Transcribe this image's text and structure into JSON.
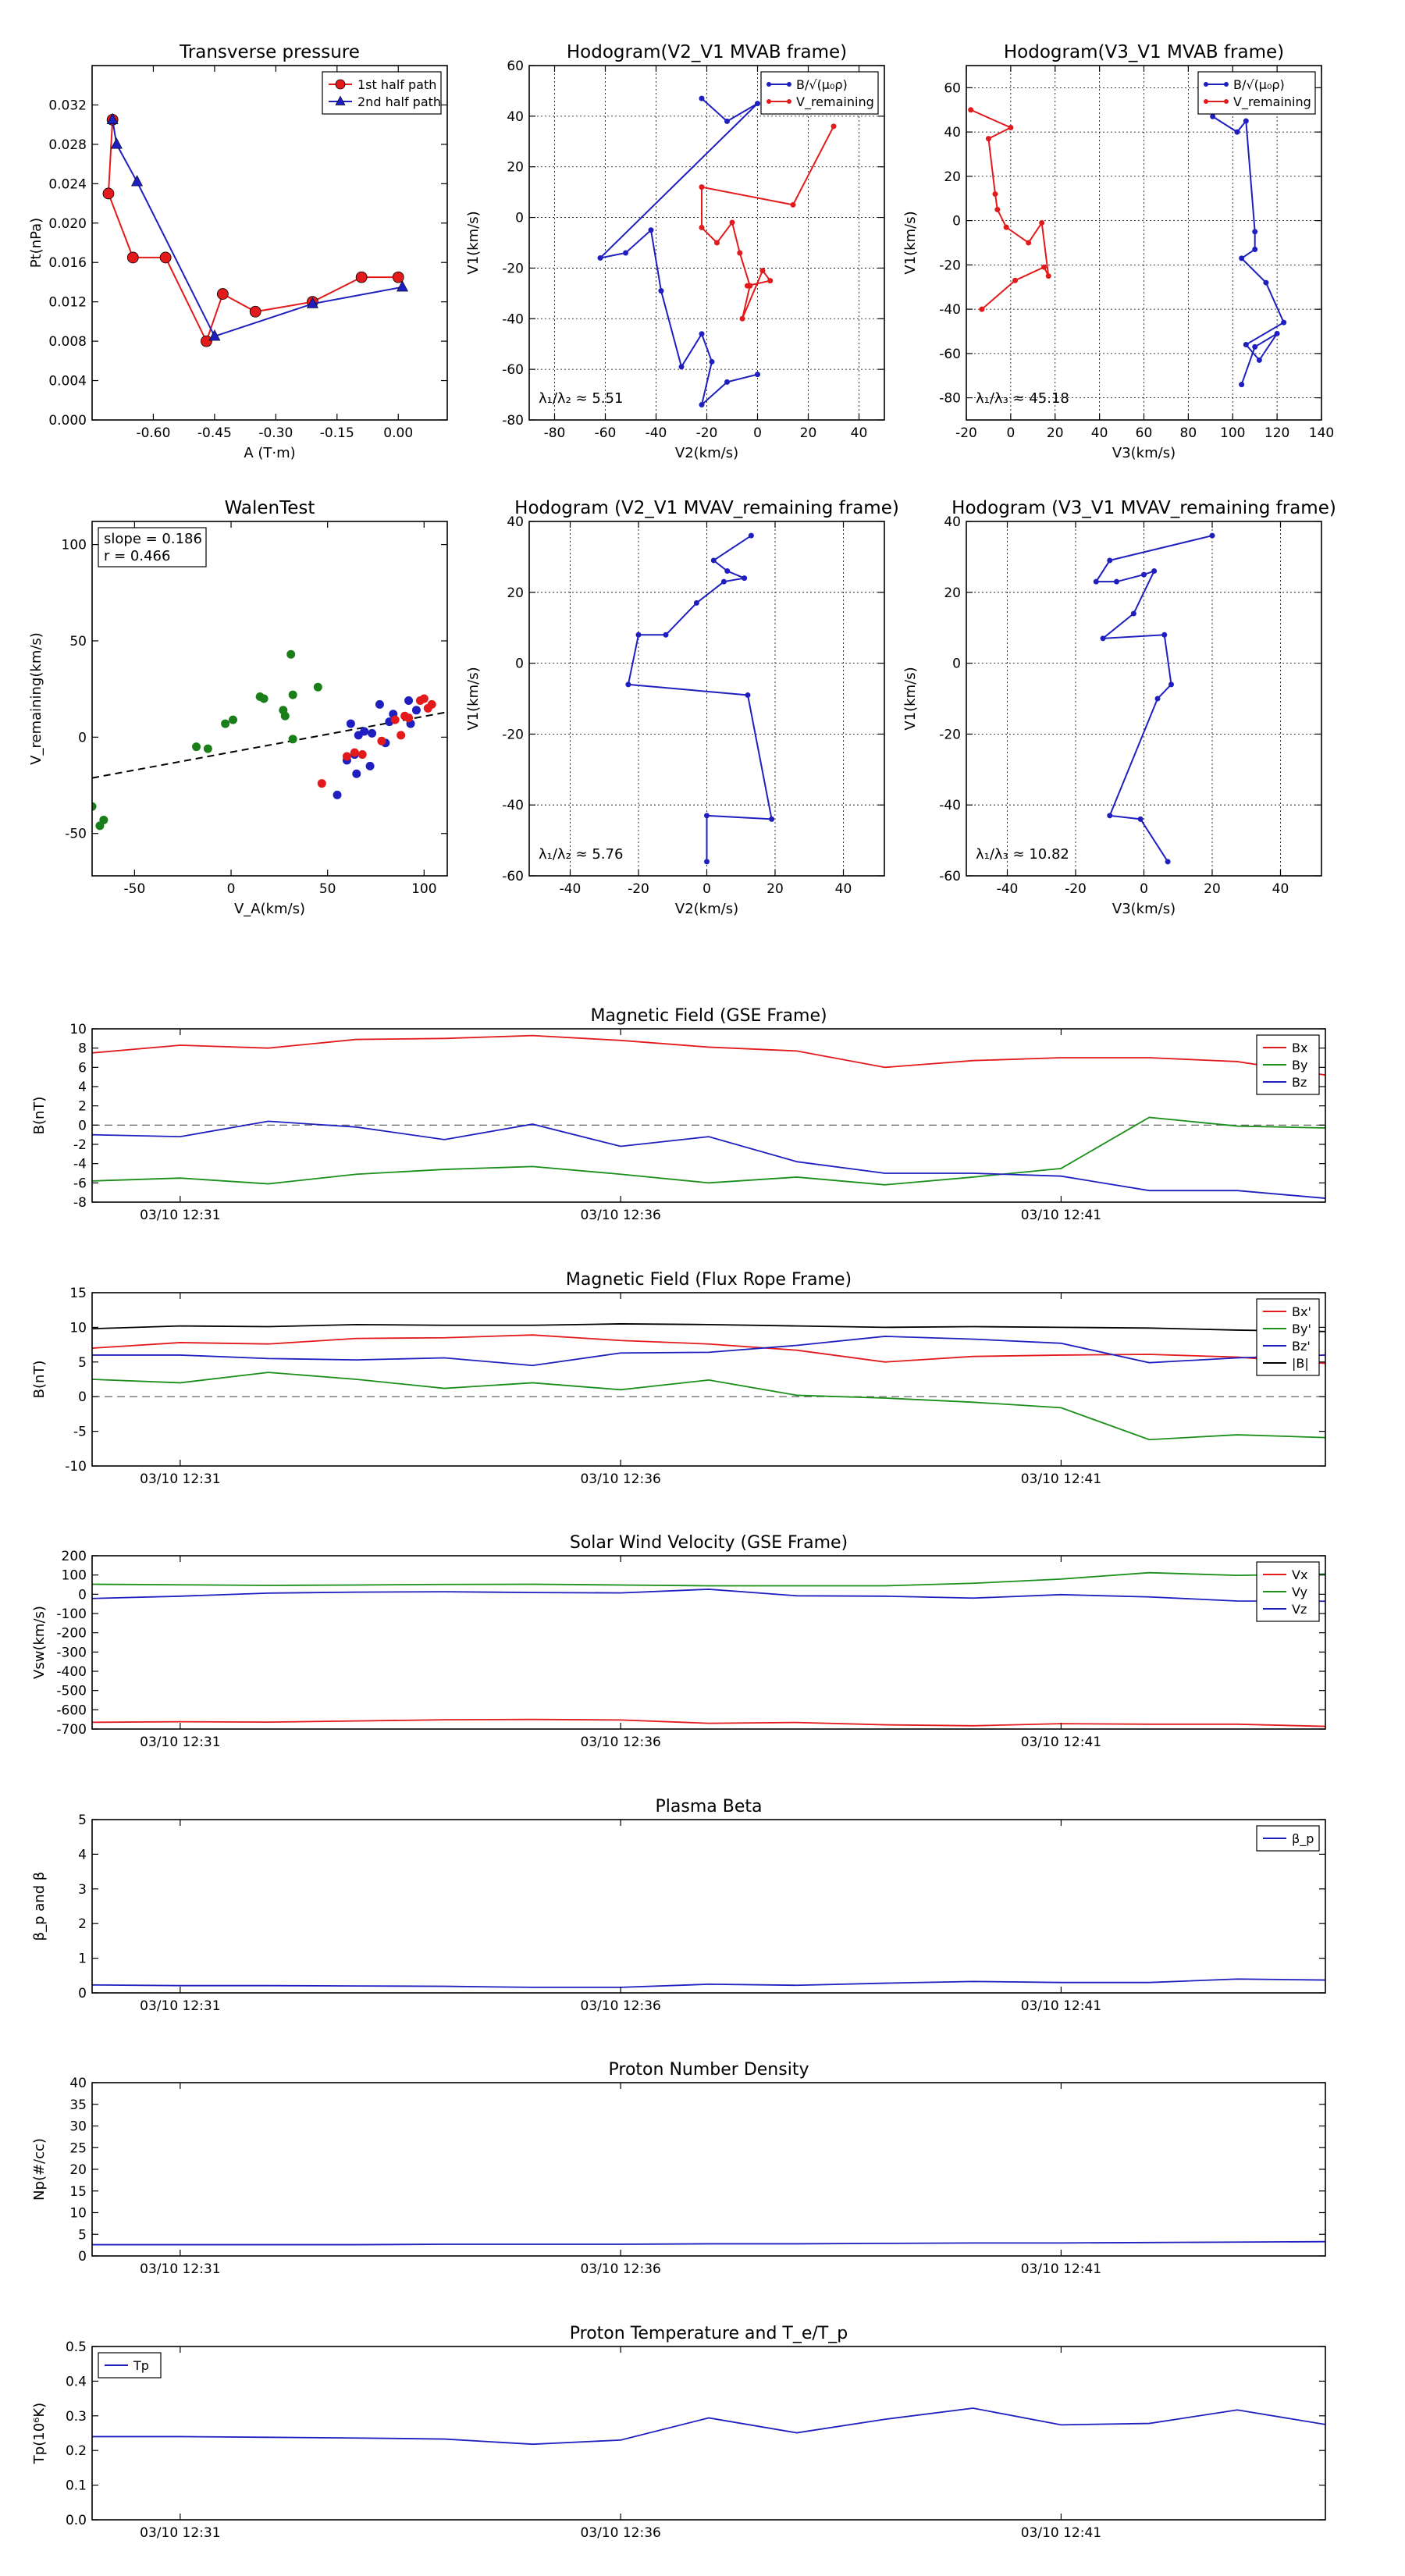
{
  "figure": {
    "layout": "6 small scatter/hodogram panels (2 rows x 3) above 7 stacked time-series panels"
  },
  "chart_data": [
    {
      "id": "tp",
      "type": "line",
      "title": "Transverse pressure",
      "xlabel": "A (T·m)",
      "ylabel": "Pt(nPa)",
      "xlim": [
        -0.75,
        0.12
      ],
      "ylim": [
        0,
        0.036
      ],
      "xticks": [
        -0.6,
        -0.45,
        -0.3,
        -0.15,
        0.0
      ],
      "xticklabels": [
        "-0.60",
        "-0.45",
        "-0.30",
        "-0.15",
        "0.00"
      ],
      "yticks": [
        0.0,
        0.004,
        0.008,
        0.012,
        0.016,
        0.02,
        0.024,
        0.028,
        0.032
      ],
      "yticklabels": [
        "0.000",
        "0.004",
        "0.008",
        "0.012",
        "0.016",
        "0.020",
        "0.024",
        "0.028",
        "0.032"
      ],
      "grid": false,
      "legend": "top-right",
      "series": [
        {
          "name": "1st half path",
          "color": "#e31a1c",
          "marker": "circle",
          "x": [
            0.0,
            -0.09,
            -0.21,
            -0.35,
            -0.43,
            -0.47,
            -0.57,
            -0.65,
            -0.71,
            -0.7
          ],
          "y": [
            0.0145,
            0.0145,
            0.012,
            0.011,
            0.0128,
            0.008,
            0.0165,
            0.0165,
            0.023,
            0.0305
          ]
        },
        {
          "name": "2nd half path",
          "color": "#1f1fbf",
          "marker": "triangle",
          "x": [
            -0.7,
            -0.69,
            -0.64,
            -0.45,
            -0.21,
            0.01
          ],
          "y": [
            0.0305,
            0.028,
            0.0242,
            0.0085,
            0.0118,
            0.0135
          ]
        }
      ]
    },
    {
      "id": "h1",
      "type": "line",
      "title": "Hodogram(V2_V1 MVAB frame)",
      "xlabel": "V2(km/s)",
      "ylabel": "V1(km/s)",
      "xlim": [
        -90,
        50
      ],
      "ylim": [
        -80,
        60
      ],
      "xticks": [
        -80,
        -60,
        -40,
        -20,
        0,
        20,
        40
      ],
      "yticks": [
        -80,
        -60,
        -40,
        -20,
        0,
        20,
        40,
        60
      ],
      "grid": true,
      "legend": "top-right",
      "annotation": "λ₁/λ₂ ≈ 5.51",
      "series": [
        {
          "name": "B/√(μ₀ρ)",
          "color": "#1f1fbf",
          "x": [
            -22,
            -12,
            0,
            -62,
            -52,
            -42,
            -38,
            -30,
            -22,
            -18,
            -22,
            -12,
            0
          ],
          "y": [
            47,
            38,
            45,
            -16,
            -14,
            -5,
            -29,
            -59,
            -46,
            -57,
            -74,
            -65,
            -62
          ]
        },
        {
          "name": "V_remaining",
          "color": "#e31a1c",
          "x": [
            30,
            14,
            -22,
            -22,
            -16,
            -10,
            -7,
            -3,
            -6,
            2,
            5,
            -4
          ],
          "y": [
            36,
            5,
            12,
            -4,
            -10,
            -2,
            -14,
            -27,
            -40,
            -21,
            -25,
            -27
          ]
        }
      ]
    },
    {
      "id": "h2",
      "type": "line",
      "title": "Hodogram(V3_V1 MVAB frame)",
      "xlabel": "V3(km/s)",
      "ylabel": "V1(km/s)",
      "xlim": [
        -20,
        140
      ],
      "ylim": [
        -90,
        70
      ],
      "xticks": [
        -20,
        0,
        20,
        40,
        60,
        80,
        100,
        120,
        140
      ],
      "yticks": [
        -80,
        -60,
        -40,
        -20,
        0,
        20,
        40,
        60
      ],
      "grid": true,
      "legend": "top-right",
      "annotation": "λ₁/λ₃ ≈ 45.18",
      "series": [
        {
          "name": "B/√(μ₀ρ)",
          "color": "#1f1fbf",
          "x": [
            91,
            102,
            106,
            110,
            110,
            104,
            115,
            123,
            106,
            112,
            120,
            110,
            104
          ],
          "y": [
            47,
            40,
            45,
            -5,
            -13,
            -17,
            -28,
            -46,
            -56,
            -63,
            -51,
            -57,
            -74
          ]
        },
        {
          "name": "V_remaining",
          "color": "#e31a1c",
          "x": [
            -18,
            0,
            -10,
            -7,
            -6,
            -2,
            8,
            14,
            17,
            15,
            2,
            -13
          ],
          "y": [
            50,
            42,
            37,
            12,
            5,
            -3,
            -10,
            -1,
            -25,
            -21,
            -27,
            -40
          ]
        }
      ]
    },
    {
      "id": "walen",
      "type": "scatter",
      "title": "WalenTest",
      "xlabel": "V_A(km/s)",
      "ylabel": "V_remaining(km/s)",
      "xlim": [
        -72,
        112
      ],
      "ylim": [
        -72,
        112
      ],
      "xticks": [
        -50,
        0,
        50,
        100
      ],
      "yticks": [
        -50,
        0,
        50,
        100
      ],
      "grid": false,
      "annotation": [
        "slope = 0.186",
        "r = 0.466"
      ],
      "fit_line": {
        "slope": 0.186,
        "intercept": -7.8,
        "color": "#000000",
        "style": "dashed"
      },
      "series": [
        {
          "color": "#1a7f1a",
          "x": [
            -72,
            -68,
            -66,
            -18,
            -12,
            -3,
            1,
            15,
            17,
            27,
            28,
            31,
            32,
            32,
            45
          ],
          "y": [
            -36,
            -46,
            -43,
            -5,
            -6,
            7,
            9,
            21,
            20,
            14,
            11,
            43,
            22,
            -1,
            26
          ]
        },
        {
          "color": "#1f1fbf",
          "x": [
            55,
            60,
            62,
            64,
            65,
            66,
            69,
            72,
            73,
            77,
            80,
            82,
            84,
            92,
            93,
            96
          ],
          "y": [
            -30,
            -12,
            7,
            -9,
            -19,
            1,
            3,
            -15,
            2,
            17,
            -3,
            8,
            12,
            19,
            7,
            14
          ]
        },
        {
          "color": "#e31a1c",
          "x": [
            47,
            60,
            64,
            68,
            78,
            85,
            88,
            90,
            92,
            98,
            100,
            102,
            104
          ],
          "y": [
            -24,
            -10,
            -8,
            -9,
            -2,
            9,
            1,
            11,
            10,
            19,
            20,
            15,
            17
          ]
        }
      ]
    },
    {
      "id": "h3",
      "type": "line",
      "title": "Hodogram (V2_V1 MVAV_remaining frame)",
      "xlabel": "V2(km/s)",
      "ylabel": "V1(km/s)",
      "xlim": [
        -52,
        52
      ],
      "ylim": [
        -60,
        40
      ],
      "xticks": [
        -40,
        -20,
        0,
        20,
        40
      ],
      "yticks": [
        -60,
        -40,
        -20,
        0,
        20,
        40
      ],
      "grid": true,
      "annotation": "λ₁/λ₂ ≈ 5.76",
      "series": [
        {
          "color": "#1f1fbf",
          "x": [
            13,
            2,
            6,
            11,
            5,
            -3,
            -12,
            -20,
            -23,
            12,
            19,
            0,
            0
          ],
          "y": [
            36,
            29,
            26,
            24,
            23,
            17,
            8,
            8,
            -6,
            -9,
            -44,
            -43,
            -56
          ]
        }
      ]
    },
    {
      "id": "h4",
      "type": "line",
      "title": "Hodogram (V3_V1 MVAV_remaining frame)",
      "xlabel": "V3(km/s)",
      "ylabel": "V1(km/s)",
      "xlim": [
        -52,
        52
      ],
      "ylim": [
        -60,
        40
      ],
      "xticks": [
        -40,
        -20,
        0,
        20,
        40
      ],
      "yticks": [
        -60,
        -40,
        -20,
        0,
        20,
        40
      ],
      "grid": true,
      "annotation": "λ₁/λ₃ ≈ 10.82",
      "series": [
        {
          "color": "#1f1fbf",
          "x": [
            20,
            -10,
            -14,
            -8,
            0,
            3,
            -3,
            -12,
            6,
            8,
            4,
            -10,
            -1,
            7
          ],
          "y": [
            36,
            29,
            23,
            23,
            25,
            26,
            14,
            7,
            8,
            -6,
            -10,
            -43,
            -44,
            -56
          ]
        }
      ]
    },
    {
      "id": "mag_gse",
      "type": "line",
      "title": "Magnetic Field (GSE Frame)",
      "xlabel": "",
      "ylabel": "B(nT)",
      "xlim": [
        0,
        14
      ],
      "ylim": [
        -8,
        10
      ],
      "xticks": [
        1,
        6,
        11
      ],
      "xticklabels": [
        "03/10 12:31",
        "03/10 12:36",
        "03/10 12:41"
      ],
      "yticks": [
        -8,
        -6,
        -4,
        -2,
        0,
        2,
        4,
        6,
        8,
        10
      ],
      "grid": false,
      "zero_line": true,
      "legend": "top-right",
      "x": [
        0,
        1,
        2,
        3,
        4,
        5,
        6,
        7,
        8,
        9,
        10,
        11,
        12,
        13,
        14
      ],
      "series": [
        {
          "name": "Bx",
          "color": "#e31a1c",
          "values": [
            7.5,
            8.3,
            8.0,
            8.9,
            9.0,
            9.3,
            8.8,
            8.1,
            7.7,
            6.0,
            6.7,
            7.0,
            7.0,
            6.6,
            5.2
          ]
        },
        {
          "name": "By",
          "color": "#1a8f1a",
          "values": [
            -5.8,
            -5.5,
            -6.1,
            -5.1,
            -4.6,
            -4.3,
            -5.1,
            -6.0,
            -5.4,
            -6.2,
            -5.4,
            -4.5,
            0.8,
            -0.1,
            -0.3
          ]
        },
        {
          "name": "Bz",
          "color": "#1f1fbf",
          "values": [
            -1.0,
            -1.2,
            0.4,
            -0.2,
            -1.5,
            0.1,
            -2.2,
            -1.2,
            -3.8,
            -5.0,
            -5.0,
            -5.3,
            -6.8,
            -6.8,
            -7.6
          ]
        }
      ]
    },
    {
      "id": "mag_fr",
      "type": "line",
      "title": "Magnetic Field (Flux Rope Frame)",
      "xlabel": "",
      "ylabel": "B(nT)",
      "xlim": [
        0,
        14
      ],
      "ylim": [
        -10,
        15
      ],
      "xticks": [
        1,
        6,
        11
      ],
      "xticklabels": [
        "03/10 12:31",
        "03/10 12:36",
        "03/10 12:41"
      ],
      "yticks": [
        -10,
        -5,
        0,
        5,
        10,
        15
      ],
      "grid": false,
      "zero_line": true,
      "legend": "top-right",
      "x": [
        0,
        1,
        2,
        3,
        4,
        5,
        6,
        7,
        8,
        9,
        10,
        11,
        12,
        13,
        14
      ],
      "series": [
        {
          "name": "Bx'",
          "color": "#e31a1c",
          "values": [
            7.0,
            7.8,
            7.6,
            8.4,
            8.5,
            8.9,
            8.1,
            7.6,
            6.7,
            5.0,
            5.8,
            6.0,
            6.1,
            5.7,
            4.8
          ]
        },
        {
          "name": "By'",
          "color": "#1a8f1a",
          "values": [
            2.5,
            2.0,
            3.5,
            2.5,
            1.2,
            2.0,
            1.0,
            2.4,
            0.2,
            -0.2,
            -0.8,
            -1.6,
            -6.2,
            -5.5,
            -5.9
          ]
        },
        {
          "name": "Bz'",
          "color": "#1f1fbf",
          "values": [
            6.0,
            6.0,
            5.5,
            5.3,
            5.6,
            4.5,
            6.3,
            6.4,
            7.4,
            8.7,
            8.3,
            7.7,
            4.9,
            5.6,
            6.0
          ]
        },
        {
          "name": "|B|",
          "color": "#000000",
          "values": [
            9.8,
            10.2,
            10.1,
            10.4,
            10.3,
            10.3,
            10.5,
            10.4,
            10.2,
            10.0,
            10.1,
            10.0,
            9.9,
            9.6,
            9.4
          ]
        }
      ]
    },
    {
      "id": "vsw",
      "type": "line",
      "title": "Solar Wind Velocity (GSE Frame)",
      "xlabel": "",
      "ylabel": "Vsw(km/s)",
      "xlim": [
        0,
        14
      ],
      "ylim": [
        -700,
        200
      ],
      "xticks": [
        1,
        6,
        11
      ],
      "xticklabels": [
        "03/10 12:31",
        "03/10 12:36",
        "03/10 12:41"
      ],
      "yticks": [
        -700,
        -600,
        -500,
        -400,
        -300,
        -200,
        -100,
        0,
        100,
        200
      ],
      "grid": false,
      "legend": "top-right",
      "x": [
        0,
        1,
        2,
        3,
        4,
        5,
        6,
        7,
        8,
        9,
        10,
        11,
        12,
        13,
        14
      ],
      "series": [
        {
          "name": "Vx",
          "color": "#e31a1c",
          "values": [
            -665,
            -662,
            -664,
            -658,
            -652,
            -650,
            -653,
            -670,
            -666,
            -678,
            -683,
            -672,
            -675,
            -675,
            -686
          ]
        },
        {
          "name": "Vy",
          "color": "#1a8f1a",
          "values": [
            52,
            49,
            46,
            48,
            51,
            52,
            48,
            44,
            44,
            44,
            57,
            79,
            112,
            98,
            105
          ]
        },
        {
          "name": "Vz",
          "color": "#1f1fbf",
          "values": [
            -22,
            -10,
            6,
            11,
            13,
            9,
            7,
            26,
            -8,
            -10,
            -20,
            -2,
            -14,
            -35,
            -36
          ]
        }
      ]
    },
    {
      "id": "beta",
      "type": "line",
      "title": "Plasma Beta",
      "xlabel": "",
      "ylabel": "β_p and β",
      "xlim": [
        0,
        14
      ],
      "ylim": [
        0,
        5
      ],
      "xticks": [
        1,
        6,
        11
      ],
      "xticklabels": [
        "03/10 12:31",
        "03/10 12:36",
        "03/10 12:41"
      ],
      "yticks": [
        0,
        1,
        2,
        3,
        4,
        5
      ],
      "grid": false,
      "legend": "top-right",
      "x": [
        0,
        1,
        2,
        3,
        4,
        5,
        6,
        7,
        8,
        9,
        10,
        11,
        12,
        13,
        14
      ],
      "series": [
        {
          "name": "β_p",
          "color": "#1f1fbf",
          "values": [
            0.23,
            0.21,
            0.21,
            0.2,
            0.19,
            0.16,
            0.16,
            0.25,
            0.22,
            0.28,
            0.33,
            0.3,
            0.3,
            0.4,
            0.37
          ]
        }
      ]
    },
    {
      "id": "np",
      "type": "line",
      "title": "Proton Number Density",
      "xlabel": "",
      "ylabel": "Np(#/cc)",
      "xlim": [
        0,
        14
      ],
      "ylim": [
        0,
        40
      ],
      "xticks": [
        1,
        6,
        11
      ],
      "xticklabels": [
        "03/10 12:31",
        "03/10 12:36",
        "03/10 12:41"
      ],
      "yticks": [
        0,
        5,
        10,
        15,
        20,
        25,
        30,
        35,
        40
      ],
      "grid": false,
      "x": [
        0,
        1,
        2,
        3,
        4,
        5,
        6,
        7,
        8,
        9,
        10,
        11,
        12,
        13,
        14
      ],
      "series": [
        {
          "color": "#1f1fbf",
          "values": [
            2.6,
            2.6,
            2.6,
            2.6,
            2.7,
            2.7,
            2.7,
            2.8,
            2.8,
            2.9,
            3.0,
            3.0,
            3.1,
            3.2,
            3.3
          ]
        }
      ]
    },
    {
      "id": "tp_temp",
      "type": "line",
      "title": "Proton Temperature and T_e/T_p",
      "xlabel": "",
      "ylabel": "Tp(10⁶K)",
      "xlim": [
        0,
        14
      ],
      "ylim": [
        0,
        0.5
      ],
      "xticks": [
        1,
        6,
        11
      ],
      "xticklabels": [
        "03/10 12:31",
        "03/10 12:36",
        "03/10 12:41"
      ],
      "yticks": [
        0.0,
        0.1,
        0.2,
        0.3,
        0.4,
        0.5
      ],
      "yticklabels": [
        "0.0",
        "0.1",
        "0.2",
        "0.3",
        "0.4",
        "0.5"
      ],
      "grid": false,
      "legend": "top-left",
      "x": [
        0,
        1,
        2,
        3,
        4,
        5,
        6,
        7,
        8,
        9,
        10,
        11,
        12,
        13,
        14
      ],
      "series": [
        {
          "name": "Tp",
          "color": "#1f1fbf",
          "values": [
            0.24,
            0.24,
            0.238,
            0.236,
            0.233,
            0.218,
            0.23,
            0.294,
            0.251,
            0.29,
            0.322,
            0.274,
            0.278,
            0.317,
            0.275
          ]
        }
      ]
    }
  ]
}
